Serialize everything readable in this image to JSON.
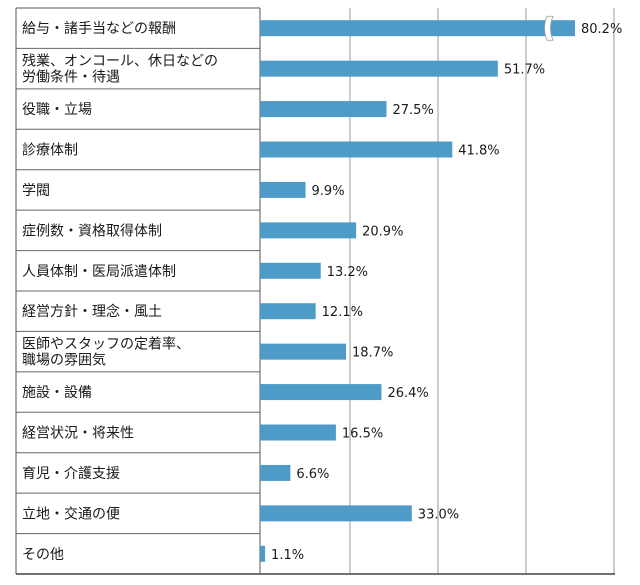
{
  "chart_data": {
    "type": "bar",
    "orientation": "horizontal",
    "title": "",
    "xlabel": "",
    "ylabel": "",
    "xlim": [
      0,
      100
    ],
    "grid": true,
    "legend": "none",
    "bar_color": "#4f9bc8",
    "categories": [
      [
        "給与・諸手当などの報酬"
      ],
      [
        "残業、オンコール、休日などの",
        "労働条件・待遇"
      ],
      [
        "役職・立場"
      ],
      [
        "診療体制"
      ],
      [
        "学閥"
      ],
      [
        "症例数・資格取得体制"
      ],
      [
        "人員体制・医局派遣体制"
      ],
      [
        "経営方針・理念・風土"
      ],
      [
        "医師やスタッフの定着率、",
        "職場の雰囲気"
      ],
      [
        "施設・設備"
      ],
      [
        "経営状況・将来性"
      ],
      [
        "育児・介護支援"
      ],
      [
        "立地・交通の便"
      ],
      [
        "その他"
      ]
    ],
    "values": [
      80.2,
      51.7,
      27.5,
      41.8,
      9.9,
      20.9,
      13.2,
      12.1,
      18.7,
      26.4,
      16.5,
      6.6,
      33.0,
      1.1
    ],
    "value_labels": [
      "80.2%",
      "51.7%",
      "27.5%",
      "41.8%",
      "9.9%",
      "20.9%",
      "13.2%",
      "12.1%",
      "18.7%",
      "26.4%",
      "16.5%",
      "6.6%",
      "33.0%",
      "1.1%"
    ],
    "axis_break": {
      "category_index": 0
    }
  }
}
